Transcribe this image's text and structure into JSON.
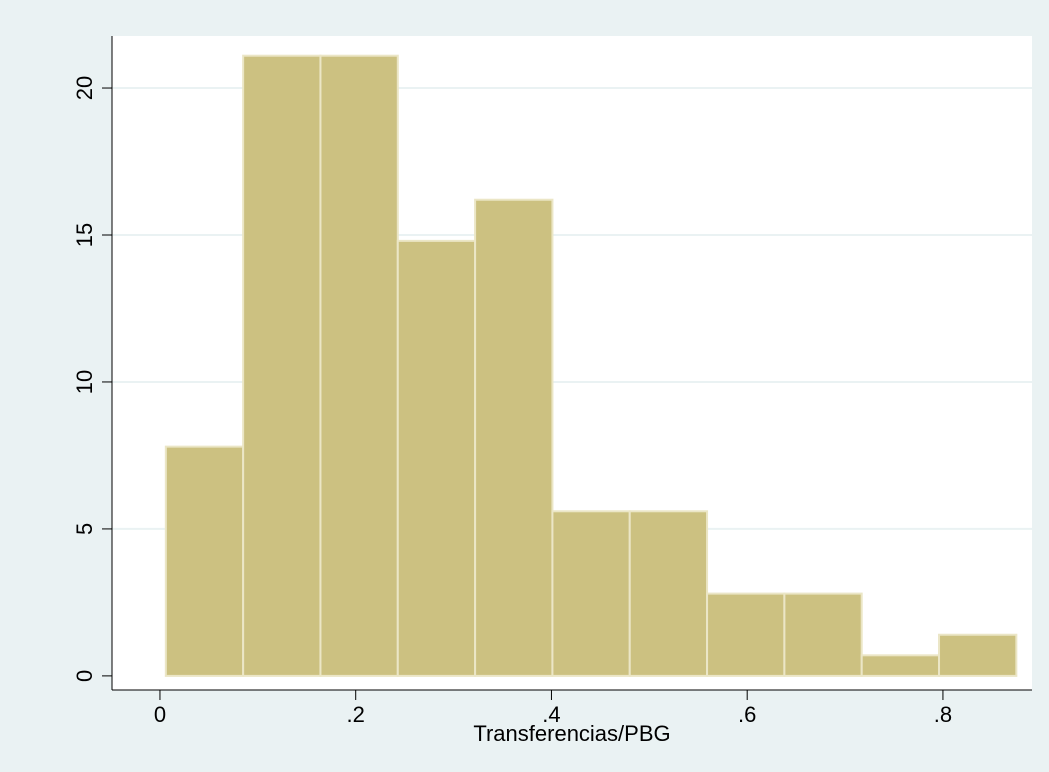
{
  "chart_data": {
    "type": "histogram",
    "x_label": "Transferencias/PBG",
    "bins": [
      0.006,
      0.085,
      0.164,
      0.243,
      0.322,
      0.401,
      0.48,
      0.559,
      0.638,
      0.717,
      0.796,
      0.875
    ],
    "values": [
      7.8,
      21.1,
      21.1,
      14.8,
      16.2,
      5.6,
      5.6,
      2.8,
      2.8,
      0.7,
      1.4
    ],
    "color": "#ccc181",
    "xlim": [
      -0.049,
      0.891
    ],
    "xticks": [
      0,
      {
        "value": 0.2,
        "label": ".2"
      },
      {
        "value": 0.4,
        "label": ".4"
      },
      {
        "value": 0.6,
        "label": ".6"
      },
      {
        "value": 0.8,
        "label": ".8"
      }
    ],
    "ylim": [
      -0.48,
      21.77
    ],
    "yticks": [
      0,
      5,
      10,
      15,
      20
    ],
    "grid": true
  }
}
